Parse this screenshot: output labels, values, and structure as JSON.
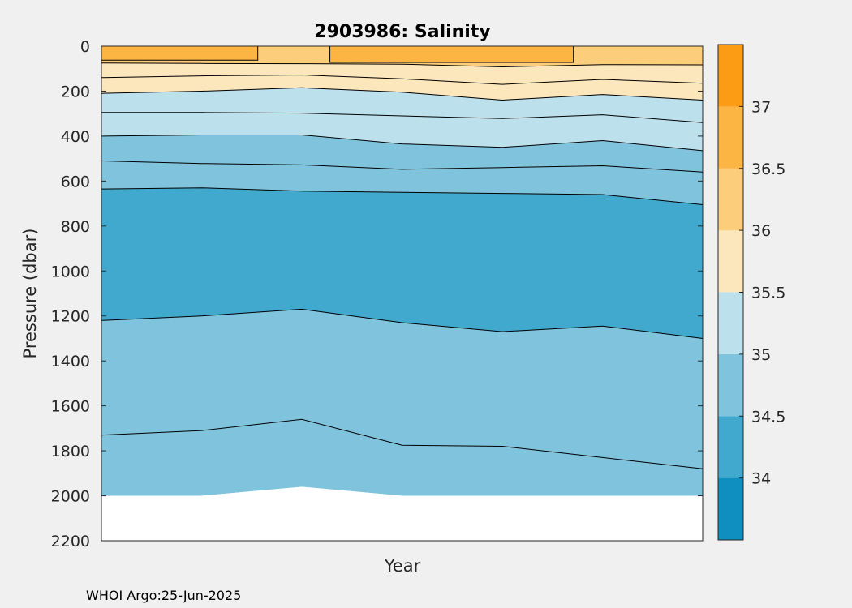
{
  "colors": {
    "background": "#f0f0f0",
    "plot_background": "#ffffff",
    "contour_line": "#000000",
    "axis": "#262626",
    "levels": [
      {
        "range": [
          33.5,
          34.0
        ],
        "color": "#0f8fbf"
      },
      {
        "range": [
          34.0,
          34.5
        ],
        "color": "#41a9ce"
      },
      {
        "range": [
          34.5,
          35.0
        ],
        "color": "#7fc3dd"
      },
      {
        "range": [
          35.0,
          35.5
        ],
        "color": "#bde0ed"
      },
      {
        "range": [
          35.5,
          36.0
        ],
        "color": "#fce6bc"
      },
      {
        "range": [
          36.0,
          36.5
        ],
        "color": "#fccd7b"
      },
      {
        "range": [
          36.5,
          37.0
        ],
        "color": "#fcb443"
      },
      {
        "range": [
          37.0,
          37.5
        ],
        "color": "#fc9b14"
      }
    ]
  },
  "chart_data": {
    "type": "contour",
    "title": "2903986:  Salinity",
    "xlabel": "Year",
    "ylabel": "Pressure (dbar)",
    "ylim": [
      0,
      2200
    ],
    "y_reversed": true,
    "yticks": [
      0,
      200,
      400,
      600,
      800,
      1000,
      1200,
      1400,
      1600,
      1800,
      2000,
      2200
    ],
    "xticks": [],
    "colorbar": {
      "range": [
        33.5,
        37.5
      ],
      "ticks": [
        34,
        34.5,
        35,
        35.5,
        36,
        36.5,
        37
      ]
    },
    "profile_x": [
      0,
      1,
      2,
      3,
      4,
      5,
      6
    ],
    "max_pressure": [
      2000,
      2000,
      1960,
      2000,
      2000,
      2000,
      2000
    ],
    "bands": [
      {
        "salinity_range": "36.0-36.5",
        "top": [
          0,
          0,
          0,
          0,
          0,
          0,
          0
        ],
        "bottom": [
          75,
          77,
          78,
          80,
          92,
          82,
          83
        ]
      },
      {
        "salinity_range": "35.5-36.0",
        "top": [
          75,
          77,
          78,
          80,
          92,
          82,
          83
        ],
        "bottom": [
          210,
          200,
          185,
          205,
          240,
          215,
          240
        ]
      },
      {
        "salinity_range": "35.0-35.5",
        "top": [
          210,
          200,
          185,
          205,
          240,
          215,
          240
        ],
        "bottom": [
          400,
          395,
          395,
          435,
          450,
          420,
          465
        ]
      },
      {
        "salinity_range": "34.5-35.0",
        "top": [
          400,
          395,
          395,
          435,
          450,
          420,
          465
        ],
        "bottom": [
          635,
          630,
          645,
          650,
          655,
          660,
          705
        ]
      },
      {
        "salinity_range": "34.0-34.5",
        "top": [
          635,
          630,
          645,
          650,
          655,
          660,
          705
        ],
        "bottom": [
          1220,
          1200,
          1170,
          1230,
          1270,
          1245,
          1300
        ]
      },
      {
        "salinity_range": "34.5-35.0",
        "top": [
          1220,
          1200,
          1170,
          1230,
          1270,
          1245,
          1300
        ],
        "bottom": [
          2000,
          2000,
          1960,
          2000,
          2000,
          2000,
          2000
        ]
      }
    ],
    "contours": [
      {
        "level": 36.0,
        "pressure": [
          75,
          77,
          78,
          80,
          92,
          82,
          83
        ]
      },
      {
        "level": 35.5,
        "pressure": [
          140,
          132,
          128,
          145,
          170,
          148,
          165
        ]
      },
      {
        "level": 35.5,
        "pressure": [
          210,
          200,
          185,
          205,
          240,
          215,
          240
        ]
      },
      {
        "level": 35.0,
        "pressure": [
          295,
          295,
          298,
          310,
          322,
          305,
          340
        ]
      },
      {
        "level": 35.0,
        "pressure": [
          400,
          395,
          395,
          435,
          450,
          420,
          465
        ]
      },
      {
        "level": 34.5,
        "pressure": [
          510,
          522,
          528,
          548,
          540,
          532,
          560
        ]
      },
      {
        "level": 34.5,
        "pressure": [
          635,
          630,
          645,
          650,
          655,
          660,
          705
        ]
      },
      {
        "level": 34.0,
        "pressure": [
          1220,
          1200,
          1170,
          1230,
          1270,
          1245,
          1300
        ]
      },
      {
        "level": 34.5,
        "pressure": [
          1730,
          1710,
          1660,
          1775,
          1780,
          1830,
          1880
        ]
      }
    ],
    "surface_patches": [
      {
        "salinity_range": "36.5-37.0",
        "x": [
          0,
          1.56
        ],
        "pressure": [
          0,
          62
        ]
      },
      {
        "salinity_range": "36.5-37.0",
        "x": [
          2.28,
          4.71
        ],
        "pressure": [
          0,
          72
        ]
      }
    ]
  },
  "footer": {
    "note": "WHOI Argo:25-Jun-2025"
  }
}
